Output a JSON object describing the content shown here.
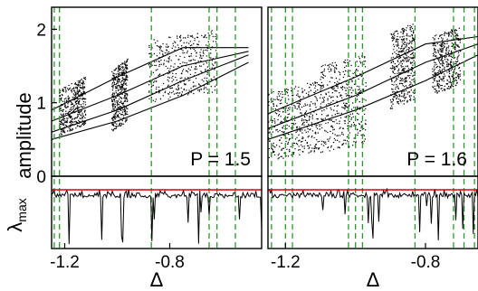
{
  "chart_data": [
    {
      "type": "scatter",
      "panel": "left",
      "xlabel": "Δ",
      "ylabel": "amplitude",
      "lower_ylabel": "λ",
      "lower_ylabel_sub": "max",
      "annotation": "P = 1.5",
      "xlim": [
        -1.25,
        -0.45
      ],
      "ylim": [
        0,
        2.3
      ],
      "xticks": [
        -1.2,
        -0.8
      ],
      "xtick_labels": [
        "-1.2",
        "-0.8"
      ],
      "yticks": [
        0,
        1,
        2
      ],
      "ytick_labels": [
        "0",
        "1",
        "2"
      ],
      "dashed_lines_x": [
        -1.24,
        -1.22,
        -0.87,
        -0.65,
        -0.62,
        -0.55
      ],
      "chaotic_bands": [
        {
          "x": [
            -1.22,
            -1.12
          ],
          "y": [
            0.55,
            1.2
          ]
        },
        {
          "x": [
            -1.02,
            -0.96
          ],
          "y": [
            0.6,
            1.45
          ]
        },
        {
          "x": [
            -0.88,
            -0.62
          ],
          "y": [
            1.0,
            1.85
          ]
        }
      ],
      "periodic_branches": [
        {
          "x": [
            -1.25,
            -1.0,
            -0.75,
            -0.5
          ],
          "y": [
            0.5,
            0.75,
            1.1,
            1.55
          ]
        },
        {
          "x": [
            -1.25,
            -1.0,
            -0.75,
            -0.5
          ],
          "y": [
            0.6,
            0.9,
            1.3,
            1.65
          ]
        },
        {
          "x": [
            -1.25,
            -1.0,
            -0.75,
            -0.5
          ],
          "y": [
            0.75,
            1.1,
            1.5,
            1.7
          ]
        },
        {
          "x": [
            -1.25,
            -1.0,
            -0.75,
            -0.5
          ],
          "y": [
            0.9,
            1.35,
            1.75,
            1.75
          ]
        }
      ],
      "lambda_max_zero_line": true
    },
    {
      "type": "scatter",
      "panel": "right",
      "xlabel": "Δ",
      "annotation": "P = 1.6",
      "xlim": [
        -1.25,
        -0.65
      ],
      "ylim": [
        0,
        2.3
      ],
      "xticks": [
        -1.2,
        -0.8
      ],
      "xtick_labels": [
        "-1.2",
        "-0.8"
      ],
      "dashed_lines_x": [
        -1.24,
        -1.2,
        -1.18,
        -1.02,
        -1.0,
        -0.98,
        -0.83,
        -0.72,
        -0.69,
        -0.66
      ],
      "chaotic_bands": [
        {
          "x": [
            -1.25,
            -1.1
          ],
          "y": [
            0.2,
            1.15
          ]
        },
        {
          "x": [
            -1.1,
            -0.97
          ],
          "y": [
            0.3,
            1.5
          ]
        },
        {
          "x": [
            -0.9,
            -0.83
          ],
          "y": [
            0.9,
            1.95
          ]
        },
        {
          "x": [
            -0.78,
            -0.7
          ],
          "y": [
            1.1,
            1.9
          ]
        }
      ],
      "periodic_branches": [
        {
          "x": [
            -1.25,
            -1.0,
            -0.8,
            -0.65
          ],
          "y": [
            0.5,
            0.9,
            1.3,
            1.65
          ]
        },
        {
          "x": [
            -1.25,
            -1.0,
            -0.8,
            -0.65
          ],
          "y": [
            0.65,
            1.1,
            1.55,
            1.8
          ]
        },
        {
          "x": [
            -1.25,
            -1.0,
            -0.8,
            -0.65
          ],
          "y": [
            0.85,
            1.35,
            1.8,
            1.9
          ]
        }
      ],
      "lambda_max_zero_line": true
    }
  ]
}
